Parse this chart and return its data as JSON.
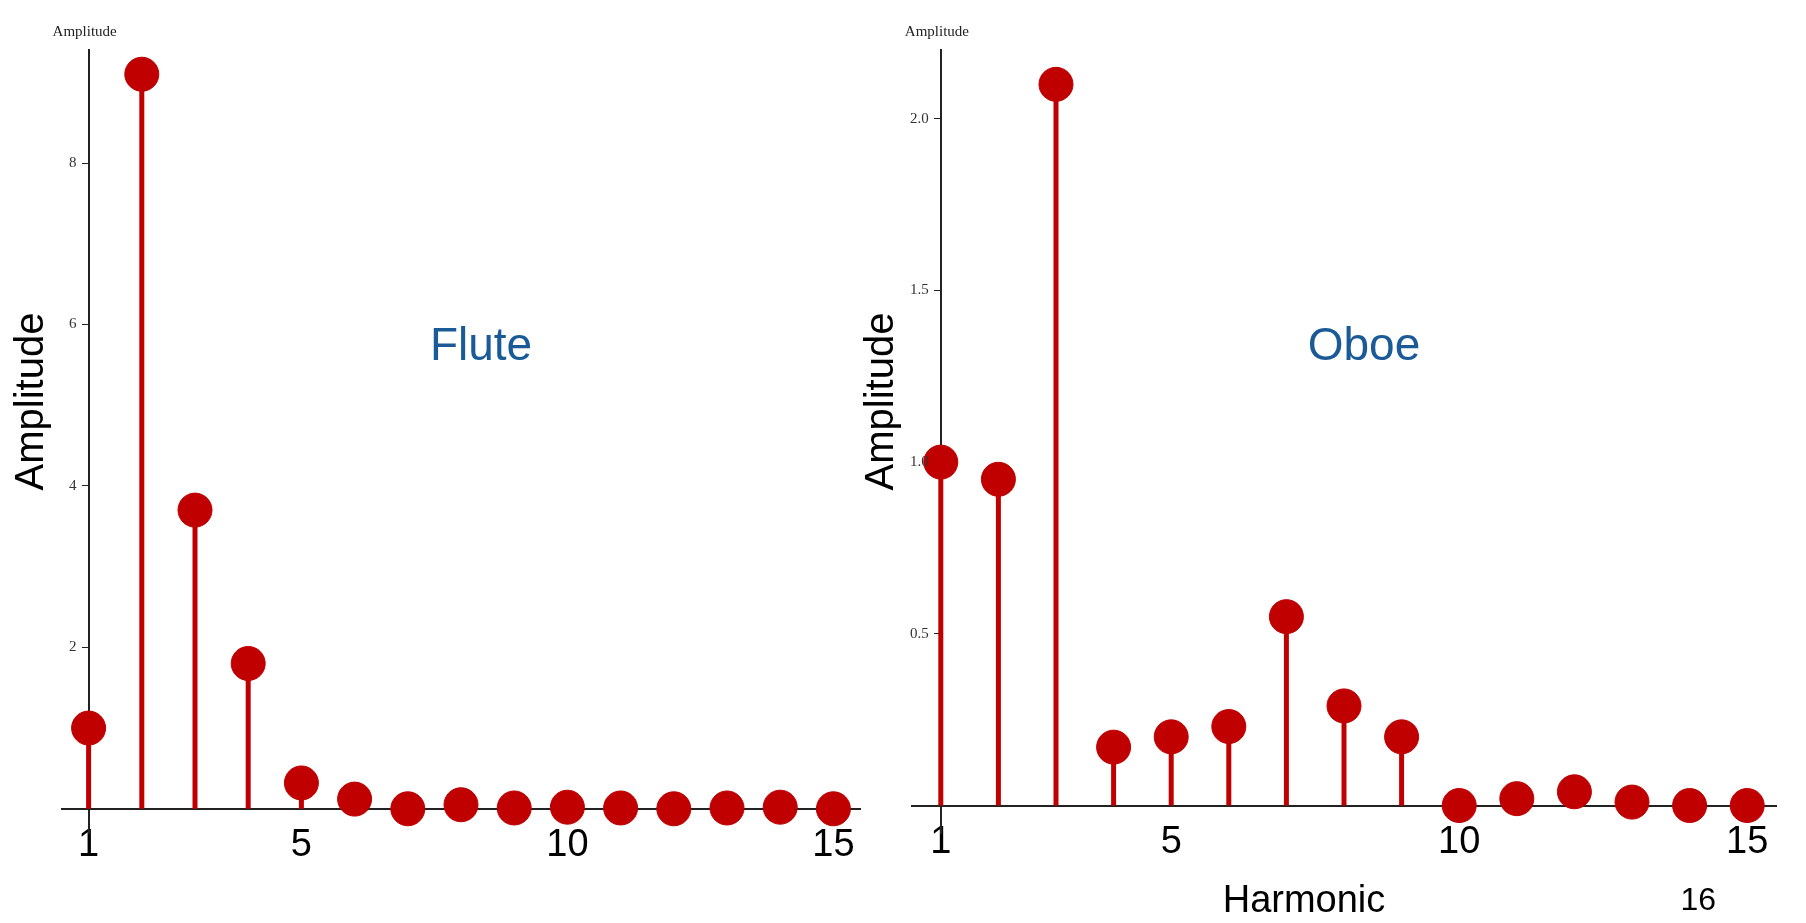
{
  "chart_data": [
    {
      "type": "lollipop",
      "title": "Flute",
      "ylabel": "Amplitude",
      "annotations": [
        "Amplitude"
      ],
      "x": [
        1,
        2,
        3,
        4,
        5,
        6,
        7,
        8,
        9,
        10,
        11,
        12,
        13,
        14,
        15
      ],
      "series": [
        {
          "color": "#c00000",
          "values": [
            1.0,
            9.1,
            3.7,
            1.8,
            0.32,
            0.12,
            0.0,
            0.05,
            0.01,
            0.02,
            0.01,
            0.0,
            0.01,
            0.02,
            0.0
          ]
        }
      ],
      "xlim": [
        0.5,
        15.5
      ],
      "xticks": [
        1,
        5,
        10,
        15
      ],
      "ylim": [
        -0.3,
        9.4
      ],
      "yticks": [
        2,
        4,
        6,
        8
      ],
      "marker": "circle",
      "grid": false,
      "legend": false
    },
    {
      "type": "lollipop",
      "title": "Oboe",
      "ylabel": "Amplitude",
      "xlabel": "Harmonic",
      "annotations": [
        "Amplitude",
        "16"
      ],
      "x": [
        1,
        2,
        3,
        4,
        5,
        6,
        7,
        8,
        9,
        10,
        11,
        12,
        13,
        14,
        15
      ],
      "series": [
        {
          "color": "#c00000",
          "values": [
            1.0,
            0.95,
            2.1,
            0.17,
            0.2,
            0.23,
            0.55,
            0.29,
            0.2,
            0.0,
            0.02,
            0.04,
            0.01,
            0.0,
            0.0
          ]
        }
      ],
      "xlim": [
        0.5,
        15.5
      ],
      "xticks": [
        1,
        5,
        10,
        15
      ],
      "ylim": [
        -0.08,
        2.2
      ],
      "yticks": [
        0.5,
        {
          "value": 1,
          "label": "1.0"
        },
        1.5,
        {
          "value": 2,
          "label": "2.0"
        }
      ],
      "marker": "circle",
      "grid": false,
      "legend": false
    }
  ]
}
